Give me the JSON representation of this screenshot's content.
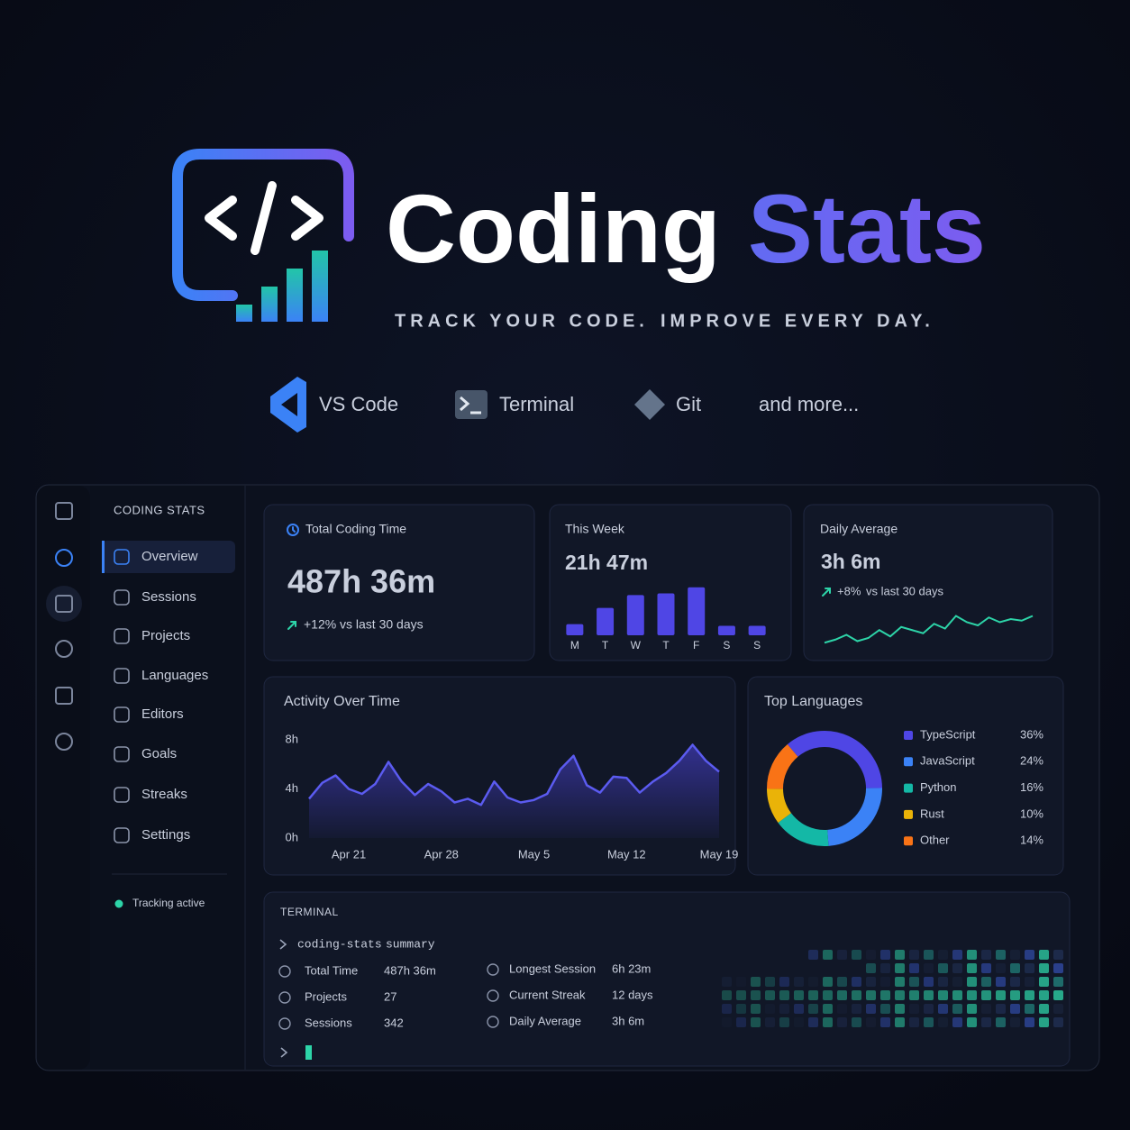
{
  "header": {
    "title_main": "Coding",
    "title_accent": "Stats",
    "tagline_1": "TRACK YOUR CODE.",
    "tagline_2": "IMPROVE EVERY DAY."
  },
  "integrations": [
    "VS Code",
    "Terminal",
    "Git",
    "and more..."
  ],
  "sidebar": {
    "brand": "CODING STATS",
    "nav": [
      "Overview",
      "Sessions",
      "Projects",
      "Languages",
      "Editors",
      "Goals",
      "Streaks",
      "Settings"
    ],
    "status": "Tracking active"
  },
  "cards": {
    "total": {
      "label": "Total Coding Time",
      "value": "487h 36m",
      "change": "+12%",
      "change_text": "vs last 30 days"
    },
    "week": {
      "label": "This Week",
      "value": "21h 47m"
    },
    "daily": {
      "label": "Daily Average",
      "value": "3h 6m",
      "change": "+8%",
      "change_text": "vs last 30 days"
    }
  },
  "chart_data": [
    {
      "type": "bar",
      "categories": [
        "M",
        "T",
        "W",
        "T",
        "F",
        "S",
        "S"
      ],
      "values": [
        1.3,
        3.2,
        4.7,
        4.9,
        5.6,
        1.1,
        1.1
      ],
      "color": "#4f46e5",
      "ylim": [
        0,
        6
      ]
    },
    {
      "type": "line",
      "values": [
        2.1,
        2.3,
        2.6,
        2.2,
        2.4,
        2.9,
        2.5,
        3.1,
        2.9,
        2.7,
        3.3,
        3.0,
        3.8,
        3.4,
        3.2,
        3.7,
        3.4,
        3.6,
        3.5,
        3.8
      ],
      "color": "#2dd4a8",
      "ylim": [
        2,
        4
      ]
    },
    {
      "type": "area",
      "title": "Activity Over Time",
      "categories": [
        null,
        null,
        null,
        "Apr 21",
        null,
        null,
        null,
        null,
        null,
        null,
        "Apr 28",
        null,
        null,
        null,
        null,
        null,
        null,
        "May 5",
        null,
        null,
        null,
        null,
        null,
        null,
        "May 12",
        null,
        null,
        null,
        null,
        null,
        null,
        "May 19"
      ],
      "values": [
        3.2,
        4.5,
        5.1,
        4.0,
        3.6,
        4.4,
        6.2,
        4.6,
        3.5,
        4.4,
        3.8,
        2.9,
        3.2,
        2.7,
        4.6,
        3.3,
        2.9,
        3.1,
        3.6,
        5.6,
        6.7,
        4.3,
        3.7,
        5.0,
        4.9,
        3.7,
        4.6,
        5.3,
        6.3,
        7.6,
        6.3,
        5.4
      ],
      "color": "#5b5bf0",
      "ylim": [
        0,
        8
      ],
      "yticks": [
        {
          "value": 0,
          "label": "0h"
        },
        {
          "value": 4,
          "label": "4h"
        },
        {
          "value": 8,
          "label": "8h"
        }
      ]
    },
    {
      "type": "donut",
      "title": "Top Languages",
      "categories": [
        "TypeScript",
        "JavaScript",
        "Python",
        "Rust",
        "Other"
      ],
      "values": [
        36,
        24,
        16,
        10,
        14
      ],
      "value_labels": [
        "36%",
        "24%",
        "16%",
        "10%",
        "14%"
      ],
      "colors": [
        "#4f46e5",
        "#3b82f6",
        "#14b8a6",
        "#eab308",
        "#f97316"
      ]
    }
  ],
  "terminal": {
    "title": "TERMINAL",
    "command": "coding-stats",
    "argument": "summary",
    "rows": [
      [
        "Total Time",
        "487h 36m"
      ],
      [
        "Projects",
        "27"
      ],
      [
        "Sessions",
        "342"
      ]
    ],
    "rows_right": [
      [
        "Longest Session",
        "6h 23m"
      ],
      [
        "Current Streak",
        "12 days"
      ],
      [
        "Daily Average",
        "3h 6m"
      ]
    ]
  }
}
